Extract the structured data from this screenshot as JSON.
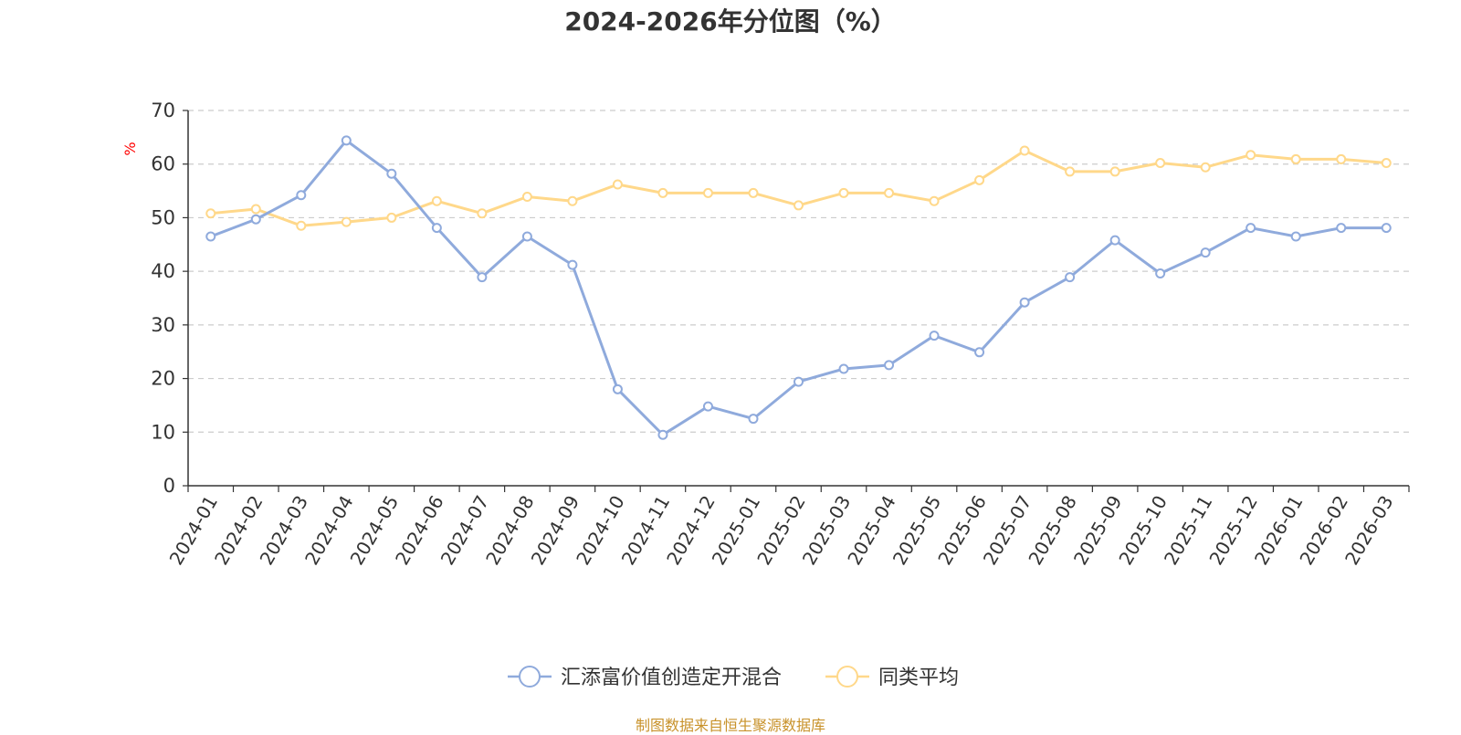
{
  "chart_data": {
    "type": "line",
    "title": "2024-2026年分位图（%）",
    "ylabel": "%",
    "xlabel": "",
    "ylim": [
      0,
      70
    ],
    "yticks": [
      0,
      10,
      20,
      30,
      40,
      50,
      60,
      70
    ],
    "grid": "horizontal-dashed",
    "legend_position": "bottom-center",
    "categories": [
      "2024-01",
      "2024-02",
      "2024-03",
      "2024-04",
      "2024-05",
      "2024-06",
      "2024-07",
      "2024-08",
      "2024-09",
      "2024-10",
      "2024-11",
      "2024-12",
      "2025-01",
      "2025-02",
      "2025-03",
      "2025-04",
      "2025-05",
      "2025-06",
      "2025-07",
      "2025-08",
      "2025-09",
      "2025-10",
      "2025-11",
      "2025-12",
      "2026-01",
      "2026-02",
      "2026-03"
    ],
    "series": [
      {
        "name": "汇添富价值创造定开混合",
        "color": "#8faadc",
        "values": [
          46.5,
          49.7,
          54.2,
          64.4,
          58.2,
          48.1,
          38.9,
          46.5,
          41.2,
          18.0,
          9.5,
          14.8,
          12.5,
          19.4,
          21.8,
          22.5,
          28.0,
          24.9,
          34.2,
          38.9,
          45.8,
          39.6,
          43.5,
          48.1,
          46.5,
          48.1,
          48.1
        ]
      },
      {
        "name": "同类平均",
        "color": "#ffd88a",
        "values": [
          50.8,
          51.6,
          48.5,
          49.2,
          50.0,
          53.1,
          50.8,
          53.9,
          53.1,
          56.2,
          54.6,
          54.6,
          54.6,
          52.3,
          54.6,
          54.6,
          53.1,
          57.0,
          62.5,
          58.6,
          58.6,
          60.2,
          59.4,
          61.7,
          60.9,
          60.9,
          60.2
        ]
      }
    ]
  },
  "source_note": "制图数据来自恒生聚源数据库"
}
